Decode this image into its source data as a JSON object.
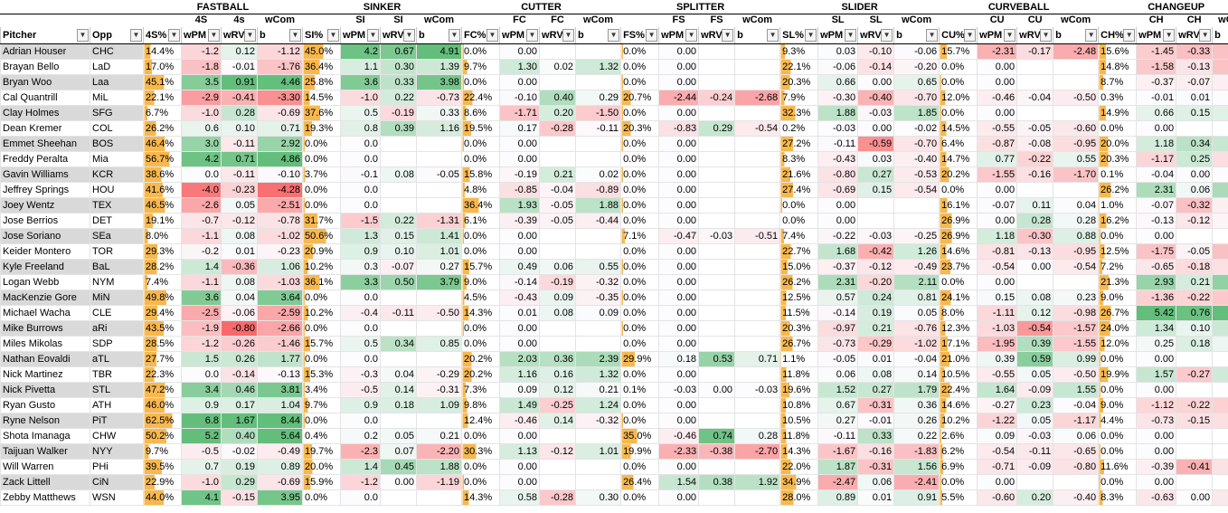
{
  "groups": [
    "FASTBALL",
    "SINKER",
    "CUTTER",
    "SPLITTER",
    "SLIDER",
    "CURVEBALL",
    "CHANGEUP"
  ],
  "col_labels": {
    "pitcher": "Pitcher",
    "opp": "Opp",
    "pitch_cols": [
      [
        "4S%",
        "4S wPM",
        "4s wRV",
        "wCom b"
      ],
      [
        "SI%",
        "SI wPM",
        "SI wRV",
        "wCom b"
      ],
      [
        "FC%",
        "FC wPM",
        "FC wRV",
        "wCom b"
      ],
      [
        "FS%",
        "FS wPM",
        "FS wRV",
        "wCom b"
      ],
      [
        "SL%",
        "SL wPM",
        "SL wRV",
        "wCom b"
      ],
      [
        "CU%",
        "CU wPM",
        "CU wRV",
        "wCom b"
      ],
      [
        "CH%",
        "CH wPM",
        "CH wRV",
        "wCom b"
      ]
    ]
  },
  "colors": {
    "good": "#63be7b",
    "neutral": "#fcfcff",
    "bad": "#f8696b",
    "bar": "#f8b84e",
    "gray": "#d9d9d9"
  },
  "rows": [
    [
      "Adrian Houser",
      "CHC",
      "14.4%",
      "-1.2",
      "0.12",
      "-1.12",
      "45.0%",
      "4.2",
      "0.67",
      "4.91",
      "0.0%",
      "0.00",
      "",
      "",
      "0.0%",
      "0.00",
      "",
      "",
      "9.3%",
      "0.03",
      "-0.10",
      "-0.06",
      "15.7%",
      "-2.31",
      "-0.17",
      "-2.48",
      "15.6%",
      "-1.45",
      "-0.33",
      "-1.78"
    ],
    [
      "Brayan Bello",
      "LaD",
      "17.0%",
      "-1.8",
      "-0.01",
      "-1.76",
      "36.4%",
      "1.1",
      "0.30",
      "1.39",
      "9.7%",
      "1.30",
      "0.02",
      "1.32",
      "0.0%",
      "0.00",
      "",
      "",
      "22.1%",
      "-0.06",
      "-0.14",
      "-0.20",
      "0.0%",
      "0.00",
      "",
      "",
      "14.8%",
      "-1.58",
      "-0.13",
      "-1.72"
    ],
    [
      "Bryan Woo",
      "Laa",
      "45.1%",
      "3.5",
      "0.91",
      "4.46",
      "25.8%",
      "3.6",
      "0.33",
      "3.98",
      "0.0%",
      "0.00",
      "",
      "",
      "0.0%",
      "0.00",
      "",
      "",
      "20.3%",
      "0.66",
      "0.00",
      "0.65",
      "0.0%",
      "0.00",
      "",
      "",
      "8.7%",
      "-0.37",
      "-0.07",
      "-0.44"
    ],
    [
      "Cal Quantrill",
      "MiL",
      "22.1%",
      "-2.9",
      "-0.41",
      "-3.30",
      "14.5%",
      "-1.0",
      "0.22",
      "-0.73",
      "22.4%",
      "-0.10",
      "0.40",
      "0.29",
      "20.7%",
      "-2.44",
      "-0.24",
      "-2.68",
      "7.9%",
      "-0.30",
      "-0.40",
      "-0.70",
      "12.0%",
      "-0.46",
      "-0.04",
      "-0.50",
      "0.3%",
      "-0.01",
      "0.01",
      "-0.03"
    ],
    [
      "Clay Holmes",
      "SFG",
      "6.7%",
      "-1.0",
      "0.28",
      "-0.69",
      "37.6%",
      "0.5",
      "-0.19",
      "0.33",
      "8.6%",
      "-1.71",
      "0.20",
      "-1.50",
      "0.0%",
      "0.00",
      "",
      "",
      "32.3%",
      "1.88",
      "-0.03",
      "1.85",
      "0.0%",
      "0.00",
      "",
      "",
      "14.9%",
      "0.66",
      "0.15",
      "0.81"
    ],
    [
      "Dean Kremer",
      "COL",
      "26.2%",
      "0.6",
      "0.10",
      "0.71",
      "19.3%",
      "0.8",
      "0.39",
      "1.16",
      "19.5%",
      "0.17",
      "-0.28",
      "-0.11",
      "20.3%",
      "-0.83",
      "0.29",
      "-0.54",
      "0.2%",
      "-0.03",
      "0.00",
      "-0.02",
      "14.5%",
      "-0.55",
      "-0.05",
      "-0.60",
      "0.0%",
      "0.00",
      "",
      ""
    ],
    [
      "Emmet Sheehan",
      "BOS",
      "46.4%",
      "3.0",
      "-0.11",
      "2.92",
      "0.0%",
      "0.0",
      "",
      "",
      "0.0%",
      "0.00",
      "",
      "",
      "0.0%",
      "0.00",
      "",
      "",
      "27.2%",
      "-0.11",
      "-0.59",
      "-0.70",
      "6.4%",
      "-0.87",
      "-0.08",
      "-0.95",
      "20.0%",
      "1.18",
      "0.34",
      "1.52"
    ],
    [
      "Freddy Peralta",
      "Mia",
      "56.7%",
      "4.2",
      "0.71",
      "4.86",
      "0.0%",
      "0.0",
      "",
      "",
      "0.0%",
      "0.00",
      "",
      "",
      "0.0%",
      "0.00",
      "",
      "",
      "8.3%",
      "-0.43",
      "0.03",
      "-0.40",
      "14.7%",
      "0.77",
      "-0.22",
      "0.55",
      "20.3%",
      "-1.17",
      "0.25",
      "-0.92"
    ],
    [
      "Gavin Williams",
      "KCR",
      "38.6%",
      "0.0",
      "-0.11",
      "-0.10",
      "3.7%",
      "-0.1",
      "0.08",
      "-0.05",
      "15.8%",
      "-0.19",
      "0.21",
      "0.02",
      "0.0%",
      "0.00",
      "",
      "",
      "21.6%",
      "-0.80",
      "0.27",
      "-0.53",
      "20.2%",
      "-1.55",
      "-0.16",
      "-1.70",
      "0.1%",
      "-0.04",
      "0.00",
      "-0.03"
    ],
    [
      "Jeffrey Springs",
      "HOU",
      "41.6%",
      "-4.0",
      "-0.23",
      "-4.28",
      "0.0%",
      "0.0",
      "",
      "",
      "4.8%",
      "-0.85",
      "-0.04",
      "-0.89",
      "0.0%",
      "0.00",
      "",
      "",
      "27.4%",
      "-0.69",
      "0.15",
      "-0.54",
      "0.0%",
      "0.00",
      "",
      "",
      "26.2%",
      "2.31",
      "0.06",
      "2.38"
    ],
    [
      "Joey Wentz",
      "TEX",
      "46.5%",
      "-2.6",
      "0.05",
      "-2.51",
      "0.0%",
      "0.0",
      "",
      "",
      "36.4%",
      "1.93",
      "-0.05",
      "1.88",
      "0.0%",
      "0.00",
      "",
      "",
      "0.0%",
      "0.00",
      "",
      "",
      "16.1%",
      "-0.07",
      "0.11",
      "0.04",
      "1.0%",
      "-0.07",
      "-0.32",
      "-0.39"
    ],
    [
      "Jose Berrios",
      "DET",
      "19.1%",
      "-0.7",
      "-0.12",
      "-0.78",
      "31.7%",
      "-1.5",
      "0.22",
      "-1.31",
      "6.1%",
      "-0.39",
      "-0.05",
      "-0.44",
      "0.0%",
      "0.00",
      "",
      "",
      "0.0%",
      "0.00",
      "",
      "",
      "26.9%",
      "0.00",
      "0.28",
      "0.28",
      "16.2%",
      "-0.13",
      "-0.12",
      "-0.25"
    ],
    [
      "Jose Soriano",
      "SEa",
      "8.0%",
      "-1.1",
      "0.08",
      "-1.02",
      "50.6%",
      "1.3",
      "0.15",
      "1.41",
      "0.0%",
      "0.00",
      "",
      "",
      "7.1%",
      "-0.47",
      "-0.03",
      "-0.51",
      "7.4%",
      "-0.22",
      "-0.03",
      "-0.25",
      "26.9%",
      "1.18",
      "-0.30",
      "0.88",
      "0.0%",
      "0.00",
      "",
      ""
    ],
    [
      "Keider Montero",
      "TOR",
      "29.3%",
      "-0.2",
      "0.01",
      "-0.23",
      "20.9%",
      "0.9",
      "0.10",
      "1.01",
      "0.0%",
      "0.00",
      "",
      "",
      "0.0%",
      "0.00",
      "",
      "",
      "22.7%",
      "1.68",
      "-0.42",
      "1.26",
      "14.6%",
      "-0.81",
      "-0.13",
      "-0.95",
      "12.5%",
      "-1.75",
      "-0.05",
      "-1.80"
    ],
    [
      "Kyle Freeland",
      "BaL",
      "28.2%",
      "1.4",
      "-0.36",
      "1.06",
      "10.2%",
      "0.3",
      "-0.07",
      "0.27",
      "15.7%",
      "0.49",
      "0.06",
      "0.55",
      "0.0%",
      "0.00",
      "",
      "",
      "15.0%",
      "-0.37",
      "-0.12",
      "-0.49",
      "23.7%",
      "-0.54",
      "0.00",
      "-0.54",
      "7.2%",
      "-0.65",
      "-0.18",
      "-0.84"
    ],
    [
      "Logan Webb",
      "NYM",
      "7.4%",
      "-1.1",
      "0.08",
      "-1.03",
      "36.1%",
      "3.3",
      "0.50",
      "3.79",
      "9.0%",
      "-0.14",
      "-0.19",
      "-0.32",
      "0.0%",
      "0.00",
      "",
      "",
      "26.2%",
      "2.31",
      "-0.20",
      "2.11",
      "0.0%",
      "0.00",
      "",
      "",
      "21.3%",
      "2.93",
      "0.21",
      "3.14"
    ],
    [
      "MacKenzie Gore",
      "MiN",
      "49.8%",
      "3.6",
      "0.04",
      "3.64",
      "0.0%",
      "0.0",
      "",
      "",
      "4.5%",
      "-0.43",
      "0.09",
      "-0.35",
      "0.0%",
      "0.00",
      "",
      "",
      "12.5%",
      "0.57",
      "0.24",
      "0.81",
      "24.1%",
      "0.15",
      "0.08",
      "0.23",
      "9.0%",
      "-1.36",
      "-0.22",
      "-1.57"
    ],
    [
      "Michael Wacha",
      "CLE",
      "29.4%",
      "-2.5",
      "-0.06",
      "-2.59",
      "10.2%",
      "-0.4",
      "-0.11",
      "-0.50",
      "14.3%",
      "0.01",
      "0.08",
      "0.09",
      "0.0%",
      "0.00",
      "",
      "",
      "11.5%",
      "-0.14",
      "0.19",
      "0.05",
      "8.0%",
      "-1.11",
      "0.12",
      "-0.98",
      "26.7%",
      "5.42",
      "0.76",
      "6.18"
    ],
    [
      "Mike Burrows",
      "aRi",
      "43.5%",
      "-1.9",
      "-0.80",
      "-2.66",
      "0.0%",
      "0.0",
      "",
      "",
      "0.0%",
      "0.00",
      "",
      "",
      "0.0%",
      "0.00",
      "",
      "",
      "20.3%",
      "-0.97",
      "0.21",
      "-0.76",
      "12.3%",
      "-1.03",
      "-0.54",
      "-1.57",
      "24.0%",
      "1.34",
      "0.10",
      "1.44"
    ],
    [
      "Miles Mikolas",
      "SDP",
      "28.5%",
      "-1.2",
      "-0.26",
      "-1.46",
      "15.7%",
      "0.5",
      "0.34",
      "0.85",
      "0.0%",
      "0.00",
      "",
      "",
      "0.0%",
      "0.00",
      "",
      "",
      "26.7%",
      "-0.73",
      "-0.29",
      "-1.02",
      "17.1%",
      "-1.95",
      "0.39",
      "-1.55",
      "12.0%",
      "0.25",
      "0.18",
      "0.43"
    ],
    [
      "Nathan Eovaldi",
      "aTL",
      "27.7%",
      "1.5",
      "0.26",
      "1.77",
      "0.0%",
      "0.0",
      "",
      "",
      "20.2%",
      "2.03",
      "0.36",
      "2.39",
      "29.9%",
      "0.18",
      "0.53",
      "0.71",
      "1.1%",
      "-0.05",
      "0.01",
      "-0.04",
      "21.0%",
      "0.39",
      "0.59",
      "0.99",
      "0.0%",
      "0.00",
      "",
      ""
    ],
    [
      "Nick Martinez",
      "TBR",
      "22.3%",
      "0.0",
      "-0.14",
      "-0.13",
      "15.3%",
      "-0.3",
      "0.04",
      "-0.29",
      "20.2%",
      "1.16",
      "0.16",
      "1.32",
      "0.0%",
      "0.00",
      "",
      "",
      "11.8%",
      "0.06",
      "0.08",
      "0.14",
      "10.5%",
      "-0.55",
      "0.05",
      "-0.50",
      "19.9%",
      "1.57",
      "-0.27",
      "1.30"
    ],
    [
      "Nick Pivetta",
      "STL",
      "47.2%",
      "3.4",
      "0.46",
      "3.81",
      "3.4%",
      "-0.5",
      "0.14",
      "-0.31",
      "7.3%",
      "0.09",
      "0.12",
      "0.21",
      "0.1%",
      "-0.03",
      "0.00",
      "-0.03",
      "19.6%",
      "1.52",
      "0.27",
      "1.79",
      "22.4%",
      "1.64",
      "-0.09",
      "1.55",
      "0.0%",
      "0.00",
      "",
      ""
    ],
    [
      "Ryan Gusto",
      "ATH",
      "46.0%",
      "0.9",
      "0.17",
      "1.04",
      "9.7%",
      "0.9",
      "0.18",
      "1.09",
      "9.8%",
      "1.49",
      "-0.25",
      "1.24",
      "0.0%",
      "0.00",
      "",
      "",
      "10.8%",
      "0.67",
      "-0.31",
      "0.36",
      "14.6%",
      "-0.27",
      "0.23",
      "-0.04",
      "9.0%",
      "-1.12",
      "-0.22",
      "-1.33"
    ],
    [
      "Ryne Nelson",
      "PiT",
      "62.5%",
      "6.8",
      "1.67",
      "8.44",
      "0.0%",
      "0.0",
      "",
      "",
      "12.4%",
      "-0.46",
      "0.14",
      "-0.32",
      "0.0%",
      "0.00",
      "",
      "",
      "10.5%",
      "0.27",
      "-0.01",
      "0.26",
      "10.2%",
      "-1.22",
      "0.05",
      "-1.17",
      "4.4%",
      "-0.73",
      "-0.15",
      "-0.88"
    ],
    [
      "Shota Imanaga",
      "CHW",
      "50.2%",
      "5.2",
      "0.40",
      "5.64",
      "0.4%",
      "0.2",
      "0.05",
      "0.21",
      "0.0%",
      "0.00",
      "",
      "",
      "35.0%",
      "-0.46",
      "0.74",
      "0.28",
      "11.8%",
      "-0.11",
      "0.33",
      "0.22",
      "2.6%",
      "0.09",
      "-0.03",
      "0.06",
      "0.0%",
      "0.00",
      "",
      ""
    ],
    [
      "Taijuan Walker",
      "NYY",
      "9.7%",
      "-0.5",
      "-0.02",
      "-0.49",
      "19.7%",
      "-2.3",
      "0.07",
      "-2.20",
      "30.3%",
      "1.13",
      "-0.12",
      "1.01",
      "19.9%",
      "-2.33",
      "-0.38",
      "-2.70",
      "14.3%",
      "-1.67",
      "-0.16",
      "-1.83",
      "6.2%",
      "-0.54",
      "-0.11",
      "-0.65",
      "0.0%",
      "0.00",
      "",
      ""
    ],
    [
      "Will Warren",
      "PHi",
      "39.5%",
      "0.7",
      "0.19",
      "0.89",
      "20.0%",
      "1.4",
      "0.45",
      "1.88",
      "0.0%",
      "0.00",
      "",
      "",
      "0.0%",
      "0.00",
      "",
      "",
      "22.0%",
      "1.87",
      "-0.31",
      "1.56",
      "6.9%",
      "-0.71",
      "-0.09",
      "-0.80",
      "11.6%",
      "-0.39",
      "-0.41",
      "-0.80"
    ],
    [
      "Zack Littell",
      "CiN",
      "22.9%",
      "-1.0",
      "0.29",
      "-0.69",
      "15.9%",
      "-1.2",
      "0.00",
      "-1.19",
      "0.0%",
      "0.00",
      "",
      "",
      "26.4%",
      "1.54",
      "0.38",
      "1.92",
      "34.9%",
      "-2.47",
      "0.06",
      "-2.41",
      "0.0%",
      "0.00",
      "",
      "",
      "0.0%",
      "0.00",
      "",
      ""
    ],
    [
      "Zebby Matthews",
      "WSN",
      "44.0%",
      "4.1",
      "-0.15",
      "3.95",
      "0.0%",
      "0.0",
      "",
      "",
      "14.3%",
      "0.58",
      "-0.28",
      "0.30",
      "0.0%",
      "0.00",
      "",
      "",
      "28.0%",
      "0.89",
      "0.01",
      "0.91",
      "5.5%",
      "-0.60",
      "0.20",
      "-0.40",
      "8.3%",
      "-0.63",
      "0.00",
      "-0.62"
    ]
  ]
}
